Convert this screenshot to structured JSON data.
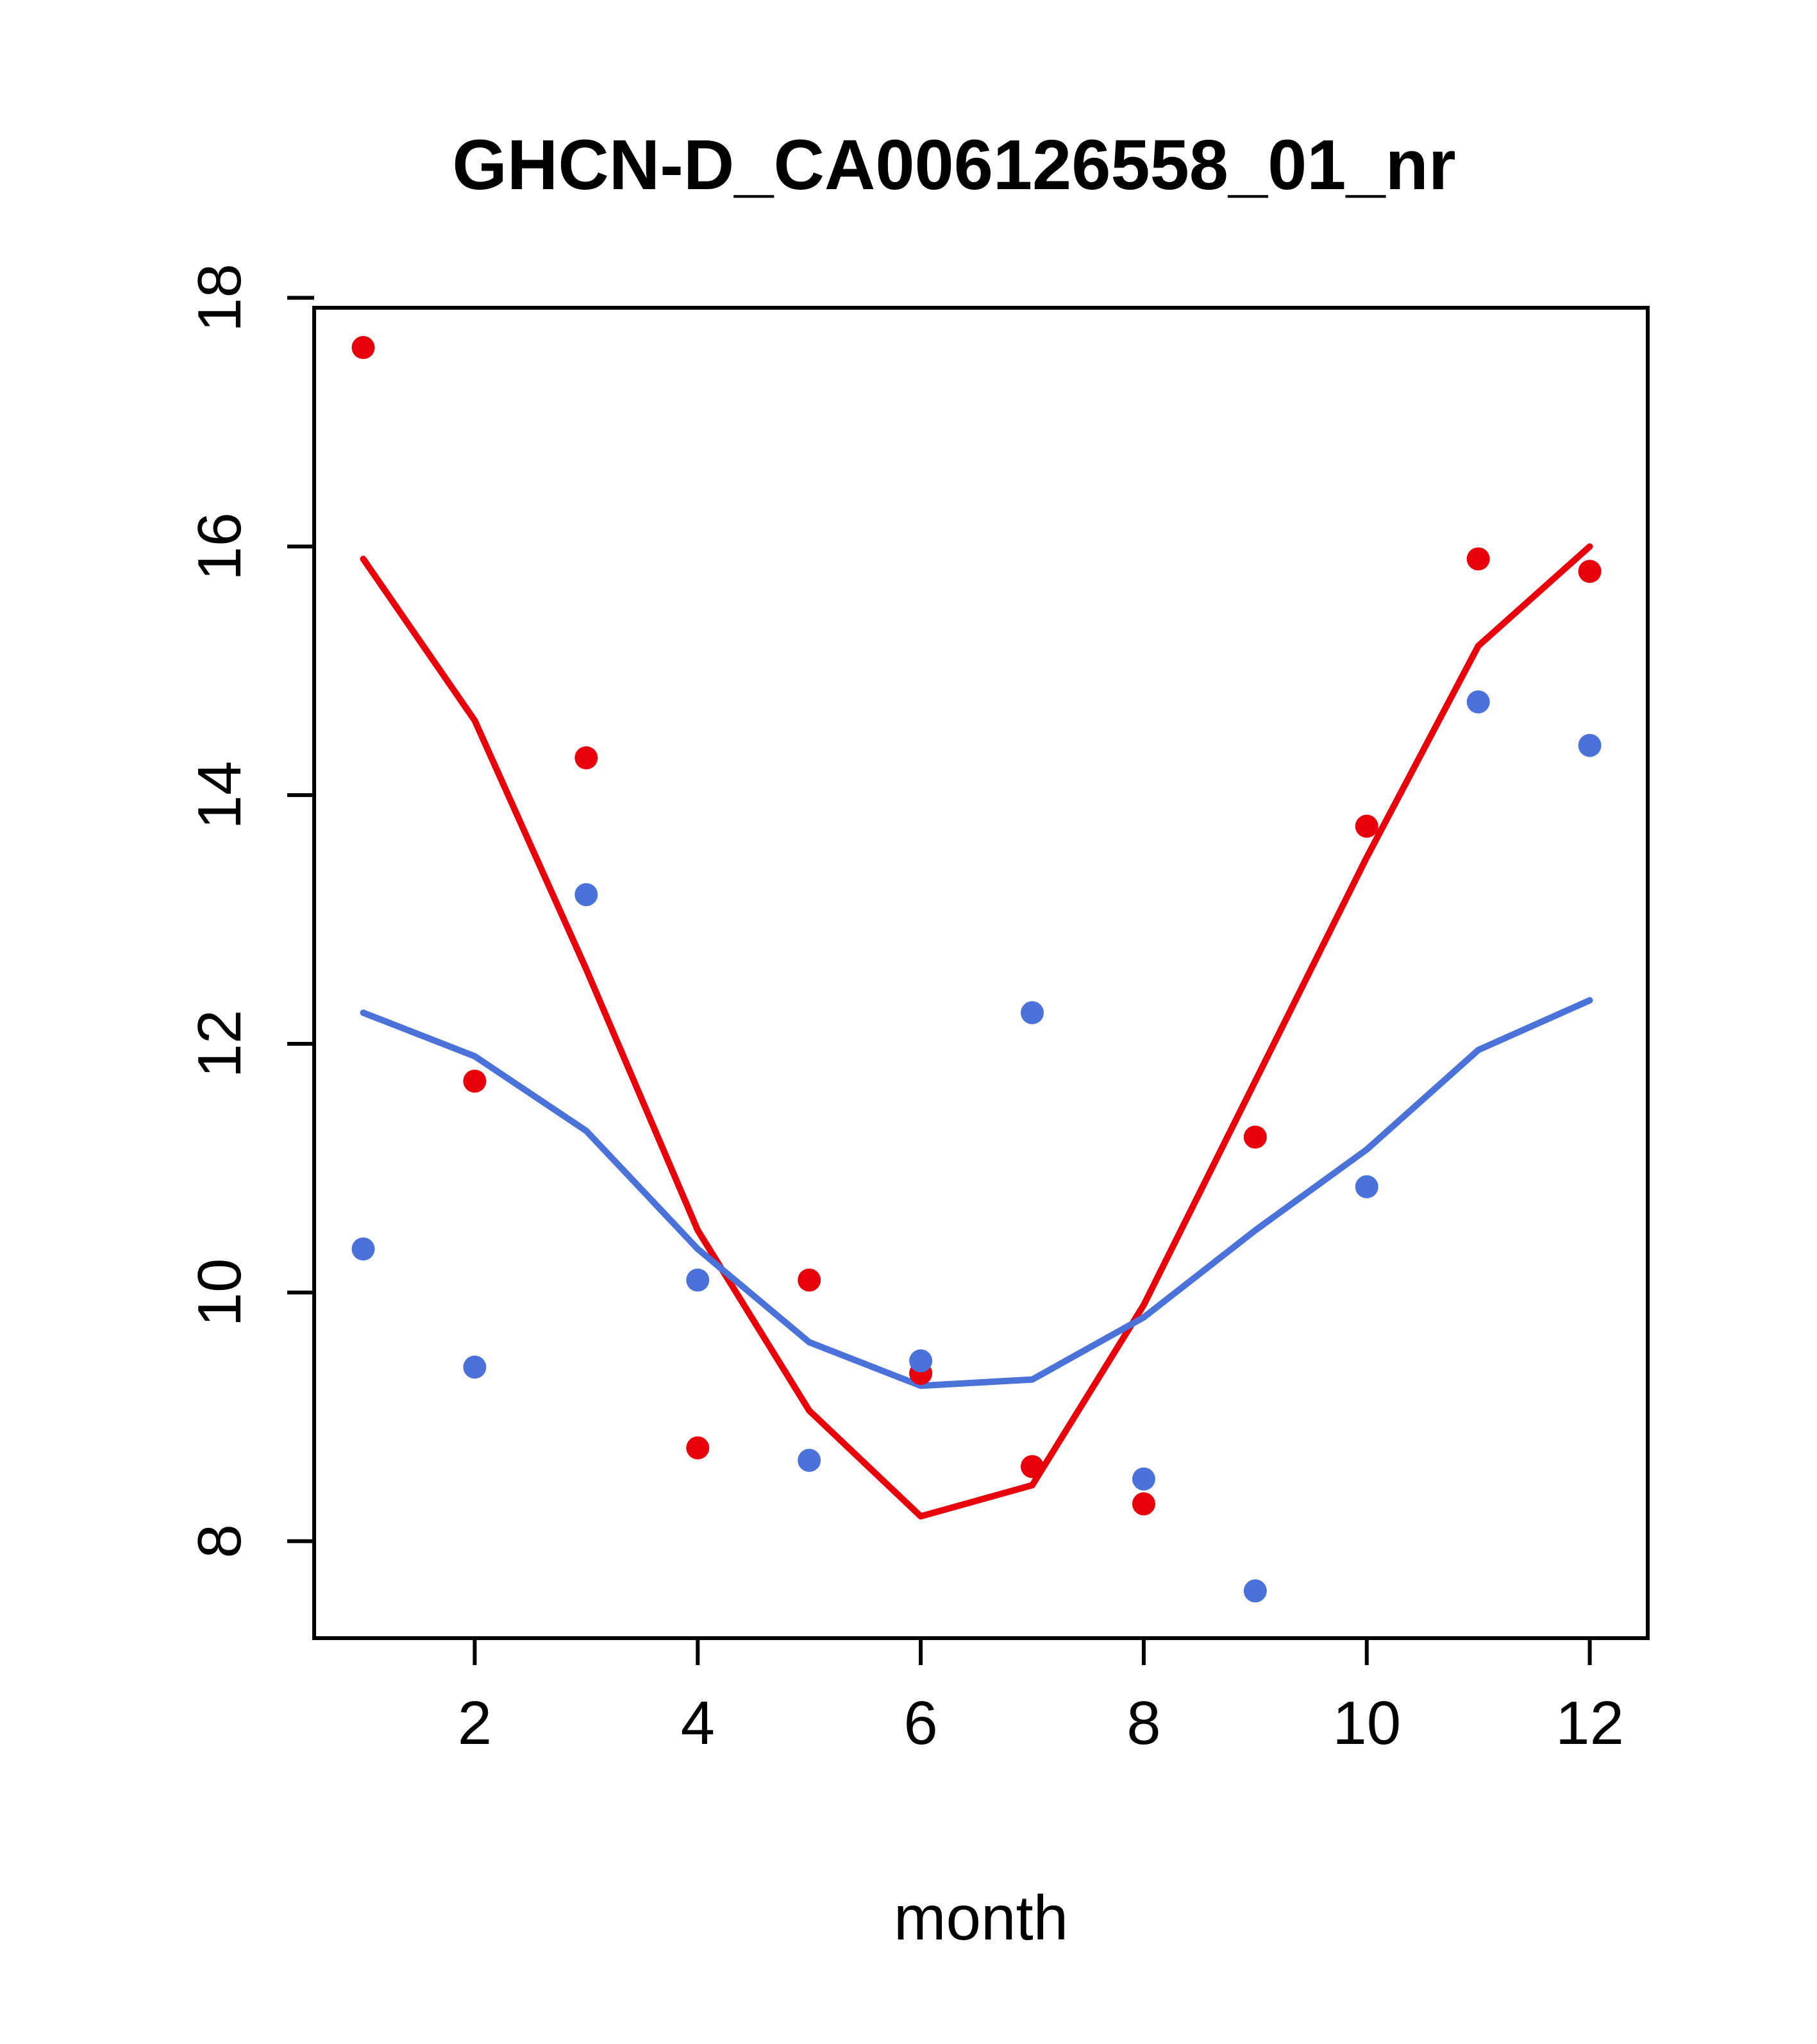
{
  "chart_data": {
    "type": "scatter",
    "title": "GHCN-D_CA006126558_01_nr",
    "xlabel": "month",
    "ylabel": "",
    "x": [
      1,
      2,
      3,
      4,
      5,
      6,
      7,
      8,
      9,
      10,
      11,
      12
    ],
    "xticks": [
      2,
      4,
      6,
      8,
      10,
      12
    ],
    "yticks": [
      8,
      10,
      12,
      14,
      16,
      18
    ],
    "xlim": [
      0.56,
      12.52
    ],
    "ylim": [
      7.22,
      17.92
    ],
    "grid": false,
    "legend": "none",
    "colors": {
      "red": "#e8000b",
      "blue": "#4a72d9",
      "axis": "#000000",
      "background": "#ffffff"
    },
    "series": [
      {
        "name": "red-points",
        "kind": "points",
        "color_key": "red",
        "values": [
          17.6,
          11.7,
          14.3,
          8.75,
          10.1,
          9.35,
          8.6,
          8.3,
          11.25,
          13.75,
          15.9,
          15.8
        ]
      },
      {
        "name": "blue-points",
        "kind": "points",
        "color_key": "blue",
        "values": [
          10.35,
          9.4,
          13.2,
          10.1,
          8.65,
          9.45,
          12.25,
          8.5,
          7.6,
          10.85,
          14.75,
          14.4
        ]
      },
      {
        "name": "red-fit-line",
        "kind": "line",
        "color_key": "red",
        "values": [
          15.9,
          14.6,
          12.6,
          10.5,
          9.05,
          8.2,
          8.45,
          9.9,
          11.7,
          13.5,
          15.2,
          16.0
        ]
      },
      {
        "name": "blue-fit-line",
        "kind": "line",
        "color_key": "blue",
        "values": [
          12.25,
          11.9,
          11.3,
          10.35,
          9.6,
          9.25,
          9.3,
          9.8,
          10.5,
          11.15,
          11.95,
          12.35
        ]
      }
    ]
  }
}
